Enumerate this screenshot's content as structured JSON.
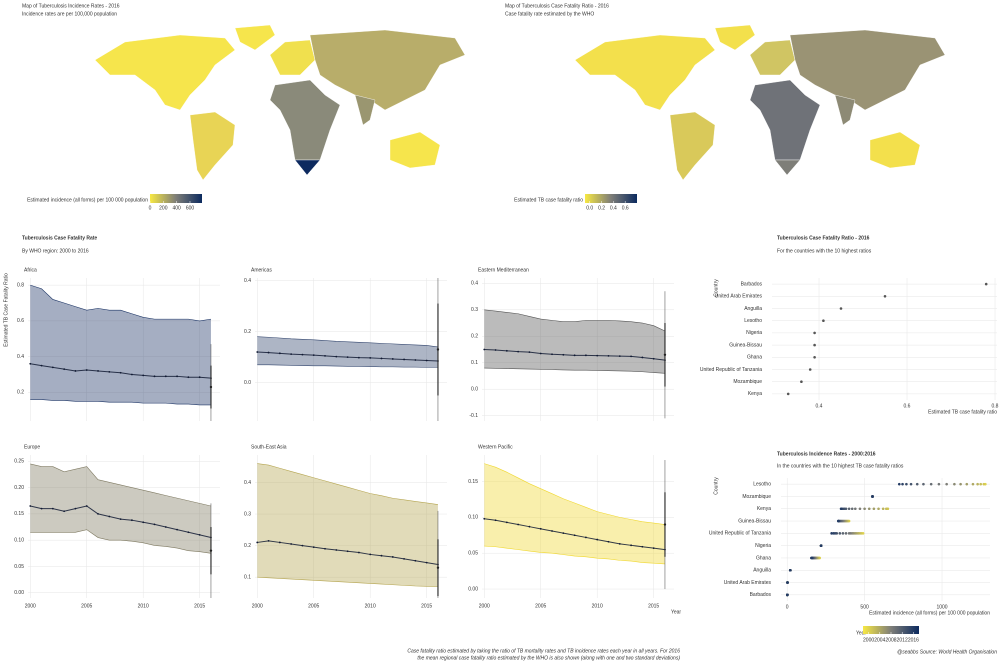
{
  "chart_data": [
    {
      "type": "map",
      "title": "Map of Tuberculosis Incidence Rates - 2016",
      "subtitle": "Incidence rates are per 100,000 population",
      "legend_title": "Estimated incidence (all forms) per 100 000 population",
      "legend_lim": [
        0,
        780
      ],
      "legend_ticks": [
        0,
        200,
        400,
        600
      ],
      "colors": [
        "#f7e843",
        "#7e7e78",
        "#0c2a5f"
      ]
    },
    {
      "type": "map",
      "title": "Map of Tuberculosis Case Fatality Ratio - 2016",
      "subtitle": "Case fatality rate estimated by the WHO",
      "legend_title": "Estimated TB case fatality ratio",
      "legend_lim": [
        -0.08,
        0.8
      ],
      "legend_ticks": [
        {
          "value": 0,
          "label": "0.0"
        },
        0.2,
        0.4,
        0.6
      ],
      "colors": [
        "#f7e843",
        "#7e7e78",
        "#0c2a5f"
      ]
    },
    {
      "type": "facet_band",
      "title": "Tuberculosis Case Fatality Rate",
      "subtitle": "By WHO region: 2000 to 2016",
      "y_label": "Estimated TB Case Fatality Ratio",
      "x_label": "Year",
      "x": [
        2000,
        2001,
        2002,
        2003,
        2004,
        2005,
        2006,
        2007,
        2008,
        2009,
        2010,
        2011,
        2012,
        2013,
        2014,
        2015,
        2016
      ],
      "xlim": [
        1999.8,
        2016.8
      ],
      "xticks": [
        2000,
        2005,
        2010,
        2015
      ],
      "who_x": 2016,
      "panels": [
        {
          "name": "Africa",
          "color": "#1d3566",
          "ylim": [
            0.04,
            0.84
          ],
          "yticks": [
            0.2,
            0.4,
            0.6,
            0.8
          ],
          "mean": [
            0.36,
            0.35,
            0.34,
            0.33,
            0.32,
            0.325,
            0.32,
            0.315,
            0.31,
            0.3,
            0.295,
            0.29,
            0.29,
            0.29,
            0.285,
            0.285,
            0.28
          ],
          "upper": [
            0.8,
            0.78,
            0.72,
            0.7,
            0.68,
            0.66,
            0.67,
            0.66,
            0.66,
            0.64,
            0.62,
            0.61,
            0.61,
            0.61,
            0.61,
            0.6,
            0.61
          ],
          "lower": [
            0.16,
            0.16,
            0.155,
            0.155,
            0.15,
            0.15,
            0.15,
            0.145,
            0.145,
            0.145,
            0.14,
            0.14,
            0.14,
            0.135,
            0.135,
            0.13,
            0.13
          ],
          "who": {
            "value": 0.23,
            "error": 0.12
          }
        },
        {
          "name": "Americas",
          "color": "#33466e",
          "ylim": [
            -0.15,
            0.41
          ],
          "yticks": [
            {
              "value": 0,
              "label": "0.0"
            },
            0.2,
            0.4
          ],
          "mean": [
            0.12,
            0.118,
            0.115,
            0.112,
            0.11,
            0.108,
            0.105,
            0.102,
            0.1,
            0.098,
            0.097,
            0.095,
            0.093,
            0.091,
            0.089,
            0.087,
            0.085
          ],
          "upper": [
            0.18,
            0.178,
            0.175,
            0.172,
            0.17,
            0.168,
            0.165,
            0.162,
            0.16,
            0.158,
            0.156,
            0.154,
            0.152,
            0.15,
            0.148,
            0.146,
            0.14
          ],
          "lower": [
            0.07,
            0.07,
            0.069,
            0.068,
            0.067,
            0.066,
            0.066,
            0.065,
            0.064,
            0.064,
            0.063,
            0.062,
            0.062,
            0.061,
            0.061,
            0.06,
            0.06
          ],
          "who": {
            "value": 0.13,
            "error": 0.18
          }
        },
        {
          "name": "Eastern Mediterranean",
          "color": "#555555",
          "ylim": [
            -0.12,
            0.42
          ],
          "yticks": [
            -0.1,
            {
              "value": 0,
              "label": "0.0"
            },
            0.1,
            0.2,
            0.3,
            0.4
          ],
          "mean": [
            0.15,
            0.148,
            0.145,
            0.142,
            0.14,
            0.135,
            0.132,
            0.13,
            0.128,
            0.128,
            0.127,
            0.126,
            0.125,
            0.124,
            0.12,
            0.115,
            0.11
          ],
          "upper": [
            0.3,
            0.295,
            0.29,
            0.285,
            0.275,
            0.265,
            0.26,
            0.255,
            0.255,
            0.26,
            0.26,
            0.26,
            0.258,
            0.255,
            0.25,
            0.24,
            0.22
          ],
          "lower": [
            0.08,
            0.079,
            0.078,
            0.077,
            0.076,
            0.075,
            0.074,
            0.073,
            0.072,
            0.072,
            0.071,
            0.07,
            0.069,
            0.068,
            0.066,
            0.063,
            0.06
          ],
          "who": {
            "value": 0.13,
            "error": 0.12
          }
        },
        {
          "name": "Europe",
          "color": "#7f7a62",
          "ylim": [
            -0.01,
            0.262
          ],
          "yticks": [
            {
              "value": 0,
              "label": "0.00"
            },
            0.05,
            {
              "value": 0.1,
              "label": "0.10"
            },
            0.15,
            {
              "value": 0.2,
              "label": "0.20"
            },
            0.25
          ],
          "mean": [
            0.165,
            0.16,
            0.16,
            0.155,
            0.16,
            0.165,
            0.15,
            0.145,
            0.14,
            0.138,
            0.134,
            0.13,
            0.125,
            0.12,
            0.115,
            0.11,
            0.105
          ],
          "upper": [
            0.245,
            0.24,
            0.24,
            0.23,
            0.235,
            0.24,
            0.215,
            0.21,
            0.205,
            0.2,
            0.195,
            0.19,
            0.185,
            0.18,
            0.175,
            0.17,
            0.165
          ],
          "lower": [
            0.115,
            0.115,
            0.115,
            0.115,
            0.115,
            0.12,
            0.105,
            0.1,
            0.1,
            0.098,
            0.095,
            0.09,
            0.088,
            0.085,
            0.08,
            0.078,
            0.075
          ],
          "who": {
            "value": 0.08,
            "error": 0.045
          }
        },
        {
          "name": "South-East Asia",
          "color": "#b5a550",
          "ylim": [
            0.034,
            0.487
          ],
          "yticks": [
            0.1,
            0.2,
            0.3,
            0.4
          ],
          "mean": [
            0.21,
            0.215,
            0.21,
            0.205,
            0.2,
            0.195,
            0.19,
            0.186,
            0.182,
            0.178,
            0.172,
            0.168,
            0.164,
            0.158,
            0.152,
            0.146,
            0.14
          ],
          "upper": [
            0.46,
            0.455,
            0.445,
            0.435,
            0.425,
            0.415,
            0.405,
            0.395,
            0.385,
            0.375,
            0.365,
            0.358,
            0.35,
            0.345,
            0.34,
            0.335,
            0.33
          ],
          "lower": [
            0.1,
            0.098,
            0.096,
            0.094,
            0.092,
            0.09,
            0.088,
            0.086,
            0.084,
            0.082,
            0.08,
            0.078,
            0.076,
            0.074,
            0.072,
            0.071,
            0.07
          ],
          "who": {
            "value": 0.13,
            "error": 0.09
          }
        },
        {
          "name": "Western Pacific",
          "color": "#f0d830",
          "ylim": [
            -0.0125,
            0.187
          ],
          "yticks": [
            {
              "value": 0,
              "label": "0.00"
            },
            0.05,
            {
              "value": 0.1,
              "label": "0.10"
            },
            0.15
          ],
          "mean": [
            0.098,
            0.096,
            0.093,
            0.09,
            0.087,
            0.084,
            0.081,
            0.078,
            0.075,
            0.072,
            0.069,
            0.066,
            0.063,
            0.061,
            0.059,
            0.057,
            0.055
          ],
          "upper": [
            0.175,
            0.17,
            0.163,
            0.155,
            0.147,
            0.14,
            0.133,
            0.126,
            0.12,
            0.114,
            0.108,
            0.104,
            0.1,
            0.097,
            0.094,
            0.092,
            0.09
          ],
          "lower": [
            0.06,
            0.059,
            0.057,
            0.055,
            0.053,
            0.051,
            0.05,
            0.048,
            0.046,
            0.045,
            0.043,
            0.042,
            0.04,
            0.039,
            0.037,
            0.036,
            0.035
          ],
          "who": {
            "value": 0.09,
            "error": 0.045
          }
        }
      ]
    },
    {
      "type": "dot",
      "title": "Tuberculosis Case Fatality Ratio - 2016",
      "subtitle": "For the countries with the 10 highest ratios",
      "y_label": "Country",
      "x_label": "Estimated TB case fatality ratio",
      "categories": [
        "Barbados",
        "United Arab Emirates",
        "Anguilla",
        "Lesotho",
        "Nigeria",
        "Guinea-Bissau",
        "Ghana",
        "United Republic of Tanzania",
        "Mozambique",
        "Kenya"
      ],
      "values": [
        0.78,
        0.55,
        0.45,
        0.41,
        0.39,
        0.39,
        0.39,
        0.38,
        0.36,
        0.33
      ],
      "color": "#555555",
      "xlim": [
        0.3,
        0.8
      ],
      "xticks": [
        0.4,
        0.6,
        0.8
      ]
    },
    {
      "type": "dot_years",
      "title": "Tuberculosis Incidence Rates - 2000:2016",
      "subtitle": "In the countries with the 10 highest TB case fatality ratios",
      "y_label": "Country",
      "x_label": "Estimated incidence (all forms) per 100 000 population",
      "years": [
        2000,
        2001,
        2002,
        2003,
        2004,
        2005,
        2006,
        2007,
        2008,
        2009,
        2010,
        2011,
        2012,
        2013,
        2014,
        2015,
        2016
      ],
      "categories": [
        "Lesotho",
        "Mozambique",
        "Kenya",
        "Guinea-Bissau",
        "United Republic of Tanzania",
        "Nigeria",
        "Ghana",
        "Anguilla",
        "United Arab Emirates",
        "Barbados"
      ],
      "values": [
        [
          1280,
          1270,
          1250,
          1230,
          1200,
          1160,
          1120,
          1080,
          1030,
          980,
          930,
          880,
          840,
          800,
          770,
          745,
          724
        ],
        [
          551,
          551,
          551,
          551,
          551,
          551,
          551,
          551,
          551,
          551,
          551,
          551,
          551,
          551,
          551,
          551,
          551
        ],
        [
          650,
          650,
          640,
          620,
          590,
          560,
          530,
          500,
          470,
          440,
          420,
          400,
          380,
          370,
          360,
          350,
          348
        ],
        [
          400,
          395,
          390,
          385,
          380,
          375,
          370,
          365,
          360,
          355,
          350,
          345,
          340,
          335,
          333,
          330,
          330
        ],
        [
          490,
          480,
          470,
          460,
          450,
          440,
          430,
          420,
          410,
          400,
          380,
          360,
          340,
          320,
          310,
          300,
          287
        ],
        [
          219,
          219,
          219,
          219,
          219,
          219,
          219,
          219,
          219,
          219,
          219,
          219,
          219,
          219,
          219,
          219,
          219
        ],
        [
          210,
          205,
          200,
          196,
          192,
          188,
          185,
          182,
          179,
          176,
          173,
          170,
          167,
          164,
          162,
          160,
          156
        ],
        [
          20,
          20,
          20,
          20,
          20,
          20,
          20,
          20,
          20,
          20,
          20,
          20,
          20,
          20,
          20,
          20,
          20
        ],
        [
          2,
          2,
          2,
          2,
          2,
          2,
          2,
          2,
          2,
          2,
          2,
          2,
          2,
          2,
          2,
          2,
          2
        ],
        [
          1,
          1,
          1,
          1,
          1,
          1,
          1,
          1,
          1,
          1,
          1,
          1,
          1,
          1,
          1,
          1,
          1
        ]
      ],
      "xlim": [
        -40,
        1310
      ],
      "xticks": [
        0,
        500,
        1000
      ],
      "legend_title": "Year",
      "legend_ticks": [
        2000,
        2004,
        2008,
        2012,
        2016
      ],
      "legend_lim": [
        1998,
        2018
      ],
      "colors": [
        "#f7e843",
        "#7e7e78",
        "#0c2a5f"
      ]
    }
  ],
  "caption": [
    "Case fatality ratio estimated by taking the ratio of TB mortality rates and TB incidence rates each year in all years. For 2016",
    "the mean regional case fatality ratio estimated by the WHO is also shown (along with one and two standard deviations)"
  ],
  "credit": "@seabbs Source: World Health Organisation"
}
